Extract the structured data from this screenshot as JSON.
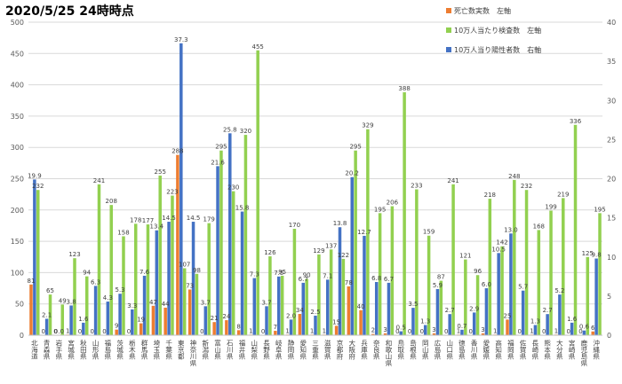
{
  "chart_data": {
    "type": "bar",
    "title": "2020/5/25 24時時点",
    "categories": [
      "北海道",
      "青森県",
      "岩手県",
      "宮城県",
      "秋田県",
      "山形県",
      "福島県",
      "茨城県",
      "栃木県",
      "群馬県",
      "埼玉県",
      "千葉県",
      "東京都",
      "神奈川県",
      "新潟県",
      "富山県",
      "石川県",
      "福井県",
      "山梨県",
      "長野県",
      "岐阜県",
      "静岡県",
      "愛知県",
      "三重県",
      "滋賀県",
      "京都府",
      "大阪府",
      "兵庫県",
      "奈良県",
      "和歌山県",
      "鳥取県",
      "島根県",
      "岡山県",
      "広島県",
      "山口県",
      "徳島県",
      "香川県",
      "愛媛県",
      "高知県",
      "福岡県",
      "佐賀県",
      "長崎県",
      "熊本県",
      "大分県",
      "宮崎県",
      "鹿児島県",
      "沖縄県"
    ],
    "series": [
      {
        "name": "死亡数実数　左軸",
        "axis": "left",
        "color": "#ed7d31",
        "values": [
          81,
          0,
          0,
          1,
          0,
          0,
          0,
          9,
          0,
          19,
          47,
          44,
          288,
          73,
          0,
          21,
          24,
          8,
          1,
          0,
          7,
          1,
          34,
          1,
          1,
          15,
          78,
          40,
          2,
          3,
          0,
          0,
          0,
          3,
          0,
          1,
          0,
          3,
          1,
          25,
          0,
          1,
          0,
          1,
          0,
          0,
          6
        ]
      },
      {
        "name": "10万人当たり検査数　左軸",
        "axis": "left",
        "color": "#92d050",
        "values": [
          232,
          65,
          49,
          123,
          94,
          241,
          208,
          158,
          178,
          177,
          255,
          223,
          107,
          98,
          179,
          295,
          230,
          320,
          455,
          126,
          95,
          170,
          90,
          129,
          137,
          122,
          295,
          329,
          195,
          206,
          388,
          233,
          159,
          87,
          241,
          121,
          96,
          218,
          142,
          248,
          232,
          168,
          199,
          219,
          336,
          125,
          195
        ]
      },
      {
        "name": "10万人当り陽性者数　右軸",
        "axis": "right",
        "color": "#4472c4",
        "values": [
          19.9,
          2.1,
          0.0,
          3.8,
          1.6,
          6.3,
          4.3,
          5.3,
          3.3,
          7.6,
          13.4,
          14.5,
          37.3,
          14.5,
          3.7,
          21.6,
          25.8,
          15.8,
          7.3,
          3.7,
          7.5,
          2.0,
          6.7,
          2.5,
          7.1,
          13.8,
          20.2,
          12.7,
          6.8,
          6.7,
          0.5,
          3.5,
          1.3,
          5.9,
          2.7,
          0.7,
          2.9,
          6.0,
          10.5,
          13.0,
          5.7,
          1.3,
          2.7,
          5.2,
          1.6,
          0.6,
          9.8
        ]
      }
    ],
    "y_left": {
      "min": 0,
      "max": 500,
      "ticks": [
        0,
        50,
        100,
        150,
        200,
        250,
        300,
        350,
        400,
        450,
        500
      ]
    },
    "y_right": {
      "min": 0,
      "max": 40,
      "ticks": [
        0,
        5,
        10,
        15,
        20,
        25,
        30,
        35,
        40
      ]
    },
    "legend_position": "top-right",
    "grid": true
  }
}
